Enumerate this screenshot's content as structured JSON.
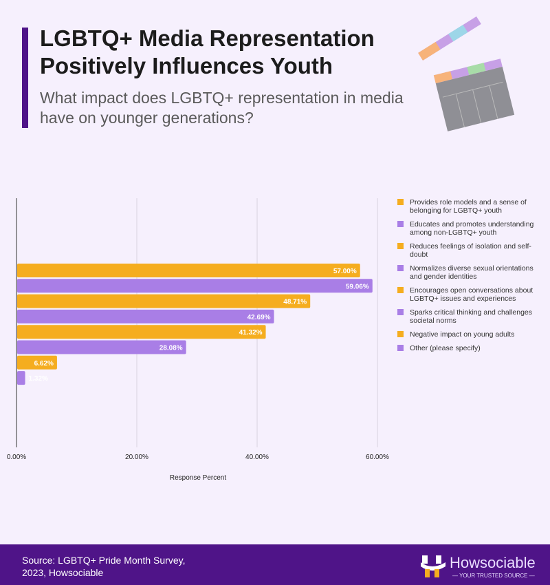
{
  "header": {
    "title": "LGBTQ+ Media Representation Positively Influences Youth",
    "subtitle": "What impact does LGBTQ+ representation in media have on younger generations?"
  },
  "chart_data": {
    "type": "bar",
    "orientation": "horizontal",
    "categories": [
      "Provides role models and a sense of belonging for LGBTQ+ youth",
      "Educates and promotes understanding among non-LGBTQ+ youth",
      "Reduces feelings of isolation and self-doubt",
      "Normalizes diverse sexual orientations and gender identities",
      "Encourages open conversations about LGBTQ+ issues and experiences",
      "Sparks critical thinking and challenges societal norms",
      "Negative impact on young adults",
      "Other (please specify)"
    ],
    "values": [
      57.0,
      59.06,
      48.71,
      42.69,
      41.32,
      28.08,
      6.62,
      1.32
    ],
    "data_labels": [
      "57.00%",
      "59.06%",
      "48.71%",
      "42.69%",
      "41.32%",
      "28.08%",
      "6.62%",
      "1.32%"
    ],
    "colors": [
      "#f5ad1f",
      "#a97ee6",
      "#f5ad1f",
      "#a97ee6",
      "#f5ad1f",
      "#a97ee6",
      "#f5ad1f",
      "#a97ee6"
    ],
    "xlabel": "Response Percent",
    "xlim": [
      0,
      60
    ],
    "x_ticks": [
      "0.00%",
      "20.00%",
      "40.00%",
      "60.00%"
    ],
    "grid": true,
    "legend": "right"
  },
  "footer": {
    "source": "Source: LGBTQ+ Pride Month Survey, 2023, Howsociable",
    "brand": "Howsociable",
    "tagline": "— YOUR TRUSTED SOURCE —"
  }
}
